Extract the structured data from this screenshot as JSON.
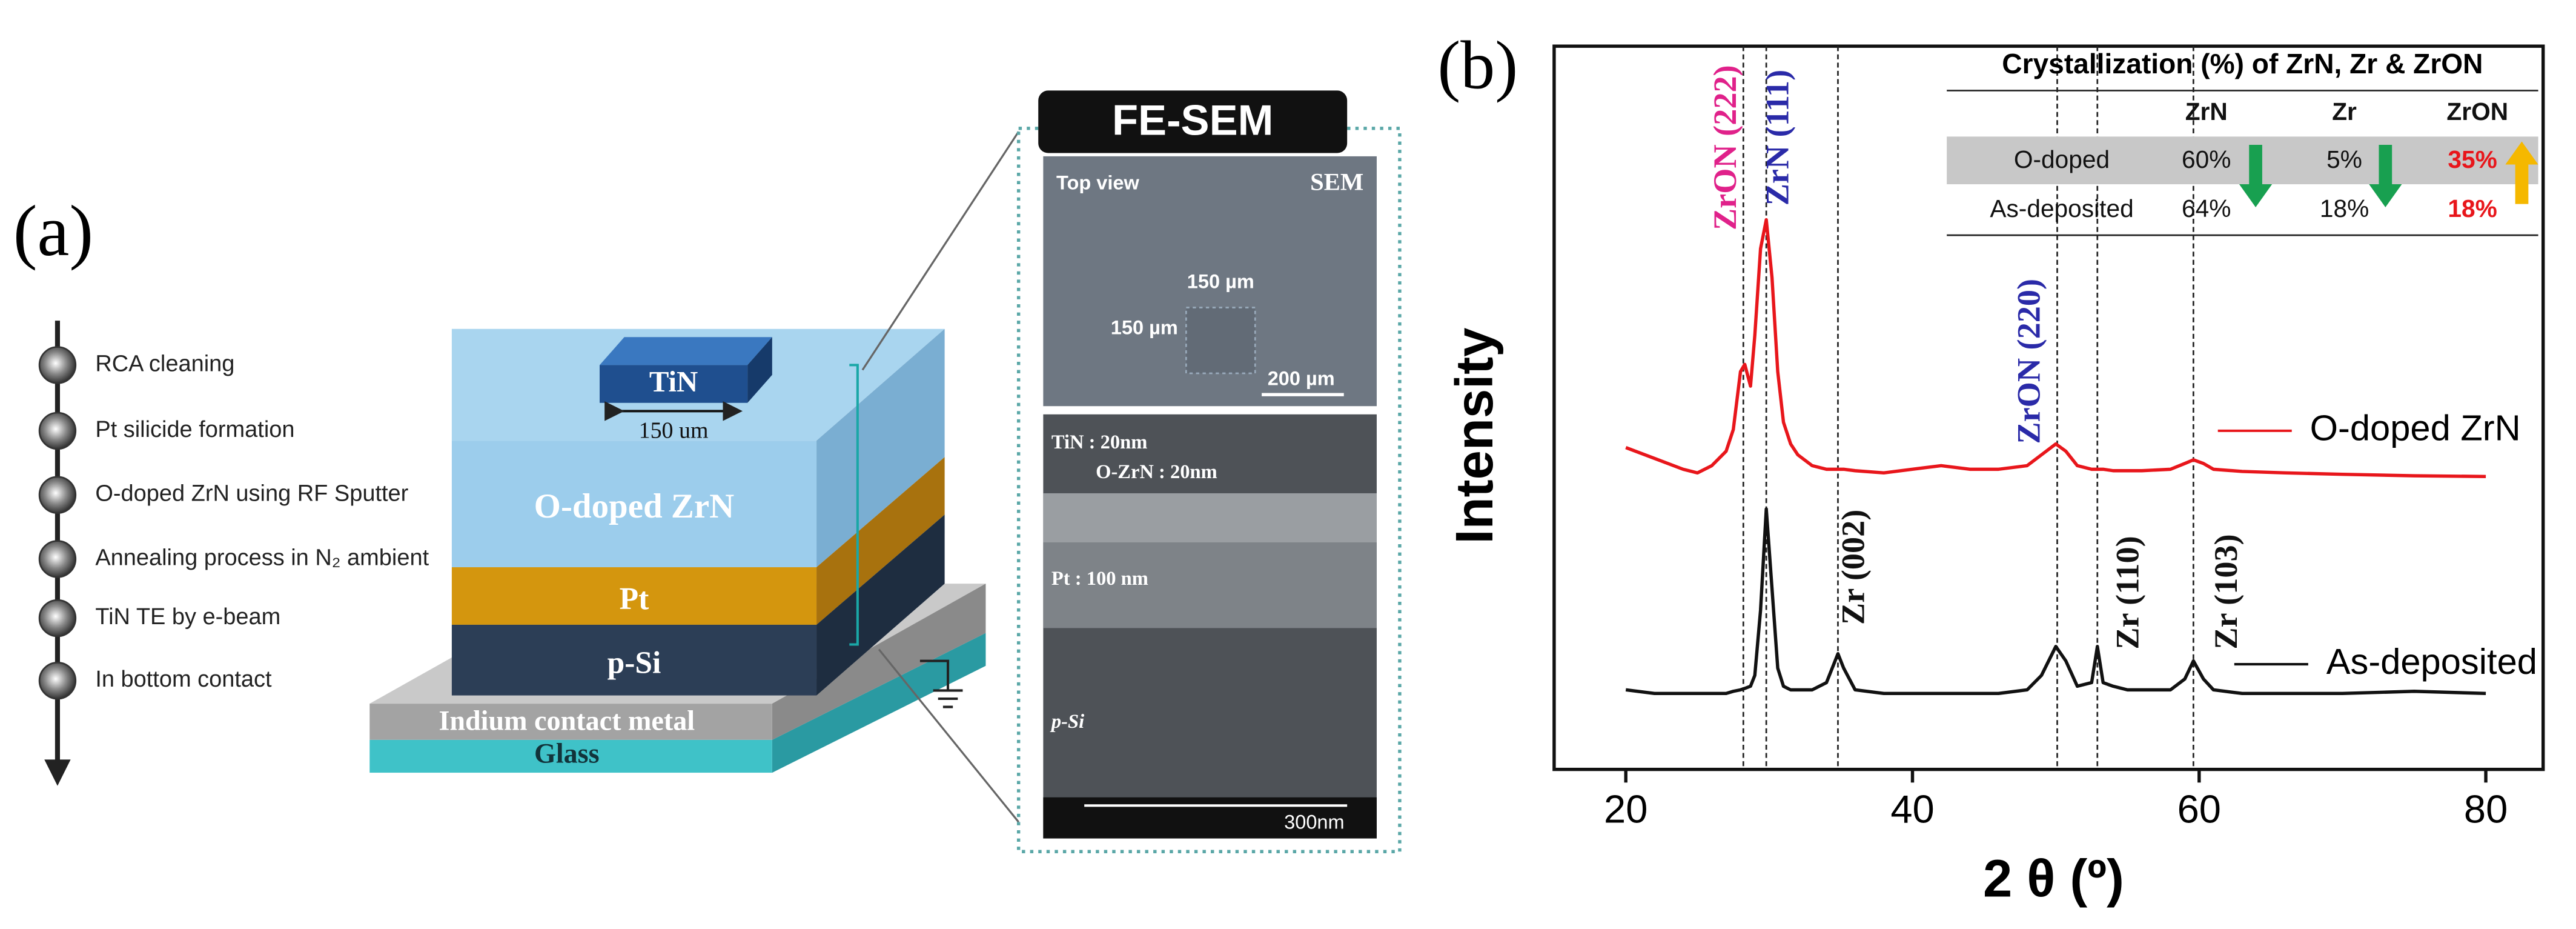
{
  "panel_a": {
    "label": "(a)",
    "process_steps": [
      "RCA cleaning",
      "Pt silicide formation",
      "O-doped ZrN using RF Sputter",
      "Annealing process in N₂ ambient",
      "TiN TE by e-beam",
      "In bottom contact"
    ],
    "device": {
      "top_electrode": "TiN",
      "pad_size": "150 um",
      "layers": [
        "O-doped ZrN",
        "Pt",
        "p-Si",
        "Indium contact metal",
        "Glass"
      ]
    },
    "sem": {
      "title": "FE-SEM",
      "top_view": {
        "label": "Top view",
        "tag": "SEM",
        "dim_x": "150 µm",
        "dim_y": "150 µm",
        "scale": "200 µm"
      },
      "cross_section": {
        "labels": [
          "TiN : 20nm",
          "O-ZrN : 20nm",
          "Pt : 100 nm",
          "p-Si"
        ],
        "scale": "300nm"
      }
    }
  },
  "chart_data": {
    "type": "line",
    "panel_label": "(b)",
    "x_label": "2 θ (º)",
    "y_label": "Intensity",
    "x": [
      20,
      22,
      24,
      25,
      26,
      27,
      27.5,
      28,
      28.3,
      28.7,
      29,
      29.4,
      29.8,
      30.2,
      30.6,
      31,
      31.5,
      32,
      33,
      34,
      34.5,
      34.8,
      35.2,
      36,
      38,
      40,
      42,
      44,
      46,
      48,
      49,
      50,
      50.7,
      51.5,
      52.5,
      52.9,
      53.3,
      54,
      55,
      56,
      58,
      59,
      59.6,
      60.3,
      61,
      63,
      66,
      70,
      75,
      80
    ],
    "series": [
      {
        "name": "O-doped ZrN",
        "color": "#e8161b",
        "values": [
          44.5,
          43,
          41.5,
          41,
          42,
          44,
          47,
          55,
          56,
          53,
          60,
          72,
          76,
          68,
          55,
          48,
          45,
          43.5,
          42,
          41.5,
          41.5,
          41.5,
          41.5,
          41.3,
          41,
          41.5,
          42,
          41.5,
          41.5,
          42,
          43.5,
          45,
          44,
          42,
          41.5,
          41.5,
          41.5,
          41.3,
          41.3,
          41.3,
          41.5,
          42.3,
          42.8,
          42.3,
          41.5,
          41.2,
          41,
          40.8,
          40.6,
          40.5
        ]
      },
      {
        "name": "As-deposited",
        "color": "#111111",
        "values": [
          11,
          10.5,
          10.5,
          10.5,
          10.5,
          10.5,
          10.8,
          11,
          11.2,
          11.5,
          13,
          22,
          36,
          25,
          14,
          11.5,
          11,
          11,
          11,
          12,
          14.5,
          16,
          14,
          11,
          10.5,
          10.5,
          10.5,
          10.5,
          10.5,
          11,
          13,
          17,
          15,
          11.5,
          12,
          17,
          12,
          11.5,
          11,
          11,
          11,
          12.5,
          15,
          12.5,
          11,
          10.5,
          10.5,
          10.5,
          10.8,
          10.5
        ]
      }
    ],
    "xlim": [
      15,
      84
    ],
    "xticks": [
      20,
      40,
      60,
      80
    ],
    "ylim": [
      0,
      100
    ],
    "peaks": [
      {
        "x": 28.2,
        "label": "ZrON (222)",
        "color": "#e0218a"
      },
      {
        "x": 29.8,
        "label": "ZrN (111)",
        "color": "#2a2aa8"
      },
      {
        "x": 34.8,
        "label": "Zr (002)",
        "color": "#111111"
      },
      {
        "x": 50.1,
        "label": "ZrON (220)",
        "color": "#2a2aa8"
      },
      {
        "x": 52.9,
        "label": "Zr (110)",
        "color": "#111111"
      },
      {
        "x": 59.6,
        "label": "Zr (103)",
        "color": "#111111"
      }
    ],
    "inset_table": {
      "title": "Crystallization (%) of ZrN, Zr & ZrON",
      "columns": [
        "ZrN",
        "Zr",
        "ZrON"
      ],
      "rows": [
        {
          "label": "O-doped",
          "cells": [
            "60%",
            "5%",
            "35%"
          ]
        },
        {
          "label": "As-deposited",
          "cells": [
            "64%",
            "18%",
            "18%"
          ]
        }
      ]
    }
  }
}
